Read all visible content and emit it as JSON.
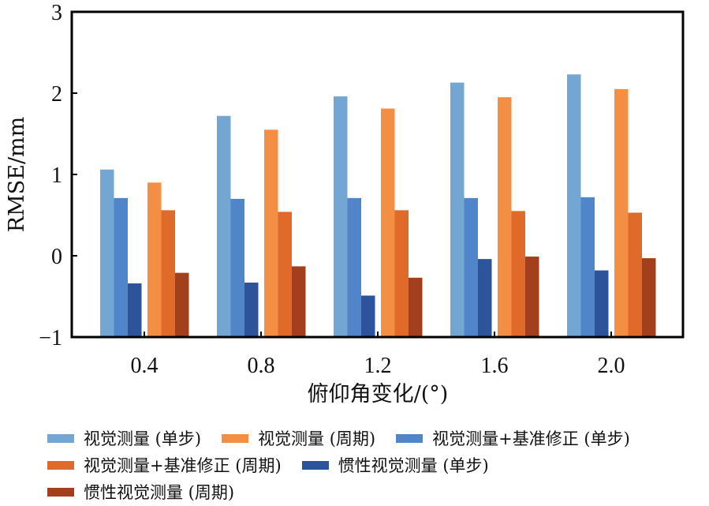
{
  "chart_data": {
    "type": "bar",
    "title": "",
    "xlabel": "俯仰角变化/(°)",
    "ylabel": "RMSE/mm",
    "categories": [
      "0.4",
      "0.8",
      "1.2",
      "1.6",
      "2.0"
    ],
    "ylim": [
      -1,
      3
    ],
    "yticks": [
      "−1",
      "0",
      "1",
      "2",
      "3"
    ],
    "ytick_values": [
      -1,
      0,
      1,
      2,
      3
    ],
    "bar_base": -1,
    "grid": false,
    "legend_position": "bottom",
    "series": [
      {
        "name": "视觉测量 (单步)",
        "color": "#73a6d2",
        "values": [
          1.06,
          1.72,
          1.96,
          2.13,
          2.23
        ]
      },
      {
        "name": "视觉测量 (周期)",
        "color": "#f28f45",
        "values": [
          0.9,
          1.55,
          1.81,
          1.95,
          2.05
        ]
      },
      {
        "name": "视觉测量+基准修正 (单步)",
        "color": "#5185c9",
        "values": [
          0.71,
          0.7,
          0.71,
          0.71,
          0.72
        ]
      },
      {
        "name": "视觉测量+基准修正 (周期)",
        "color": "#e06a2a",
        "values": [
          0.56,
          0.54,
          0.56,
          0.55,
          0.53
        ]
      },
      {
        "name": "惯性视觉测量 (单步)",
        "color": "#2d549b",
        "values": [
          -0.34,
          -0.33,
          -0.49,
          -0.04,
          -0.18
        ]
      },
      {
        "name": "惯性视觉测量 (周期)",
        "color": "#a2401e",
        "values": [
          -0.21,
          -0.13,
          -0.27,
          -0.01,
          -0.03
        ]
      }
    ]
  }
}
